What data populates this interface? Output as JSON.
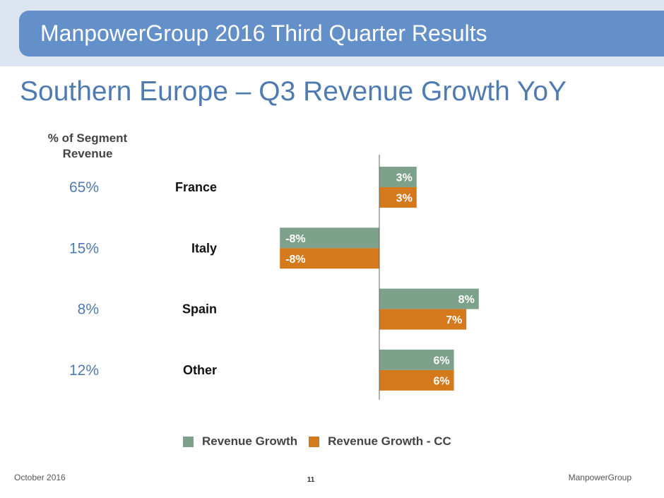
{
  "header": {
    "title": "ManpowerGroup 2016 Third Quarter Results",
    "subtitle": "Southern Europe – Q3 Revenue Growth YoY"
  },
  "colors": {
    "band_bg": "#dce5f1",
    "banner": "#6390c8",
    "series_growth": "#7ea18b",
    "series_cc": "#d4791c",
    "share_text": "#4f7bb0"
  },
  "chart_data": {
    "type": "bar",
    "orientation": "horizontal",
    "title": "Southern Europe – Q3 Revenue Growth YoY",
    "share_header": "% of Segment Revenue",
    "categories": [
      "France",
      "Italy",
      "Spain",
      "Other"
    ],
    "share_of_revenue": [
      "65%",
      "15%",
      "8%",
      "12%"
    ],
    "series": [
      {
        "name": "Revenue Growth",
        "values": [
          3,
          -8,
          8,
          6
        ],
        "labels": [
          "3%",
          "-8%",
          "8%",
          "6%"
        ]
      },
      {
        "name": "Revenue Growth - CC",
        "values": [
          3,
          -8,
          7,
          6
        ],
        "labels": [
          "3%",
          "-8%",
          "7%",
          "6%"
        ]
      }
    ],
    "xlim": [
      -8,
      8
    ],
    "unit": "%",
    "grid": false,
    "legend": "bottom"
  },
  "footer": {
    "date": "October 2016",
    "page": "11",
    "company": "ManpowerGroup"
  }
}
